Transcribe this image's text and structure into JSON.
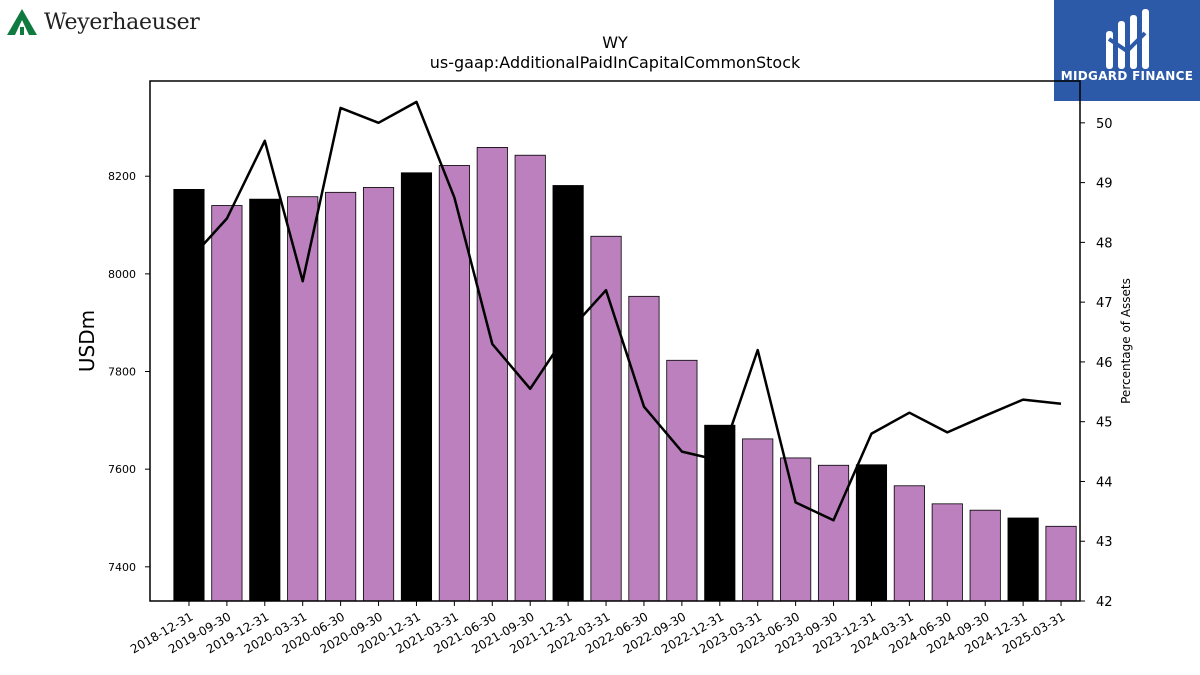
{
  "header": {
    "company_logo": {
      "name": "Weyerhaeuser",
      "icon": "tree-icon",
      "color": "#0f7a3f"
    },
    "sponsor_logo": {
      "name": "MIDGARD FINANCE",
      "icon": "midgard-m-icon",
      "background": "#2c5aa8"
    }
  },
  "chart_data": {
    "type": "bar",
    "title": "WY",
    "subtitle": "us-gaap:AdditionalPaidInCapitalCommonStock",
    "ylabel": "USDm",
    "y2label": "Percentage of Assets",
    "categories": [
      "2018-12-31",
      "2019-09-30",
      "2019-12-31",
      "2020-03-31",
      "2020-06-30",
      "2020-09-30",
      "2020-12-31",
      "2021-03-31",
      "2021-06-30",
      "2021-09-30",
      "2021-12-31",
      "2022-03-31",
      "2022-06-30",
      "2022-09-30",
      "2022-12-31",
      "2023-03-31",
      "2023-06-30",
      "2023-09-30",
      "2023-12-31",
      "2024-03-31",
      "2024-06-30",
      "2024-09-30",
      "2024-12-31",
      "2025-03-31"
    ],
    "series": [
      {
        "axis": "left",
        "kind": "bar",
        "values": [
          8173,
          8140,
          8153,
          8158,
          8167,
          8177,
          8207,
          8222,
          8259,
          8243,
          8181,
          8077,
          7954,
          7823,
          7690,
          7662,
          7623,
          7608,
          7609,
          7566,
          7529,
          7516,
          7500,
          7483
        ]
      },
      {
        "axis": "right",
        "kind": "line",
        "values": [
          47.7,
          48.4,
          49.7,
          47.35,
          50.25,
          50.0,
          50.35,
          48.75,
          46.3,
          45.55,
          46.5,
          47.2,
          45.25,
          44.5,
          44.35,
          46.2,
          43.65,
          43.35,
          44.8,
          45.15,
          44.82,
          45.1,
          45.37,
          45.3
        ]
      }
    ],
    "annual_categories": [
      "2018-12-31",
      "2019-12-31",
      "2020-12-31",
      "2021-12-31",
      "2022-12-31",
      "2023-12-31",
      "2024-12-31"
    ],
    "colors": {
      "annual_bar": "#000000",
      "quarter_bar": "#bb80bd",
      "line": "#000000"
    },
    "ylim": [
      7330,
      8395
    ],
    "yticks": [
      7400,
      7600,
      7800,
      8000,
      8200
    ],
    "y2lim": [
      42,
      50.7
    ],
    "y2ticks": [
      42,
      43,
      44,
      45,
      46,
      47,
      48,
      49,
      50
    ],
    "grid": false
  }
}
